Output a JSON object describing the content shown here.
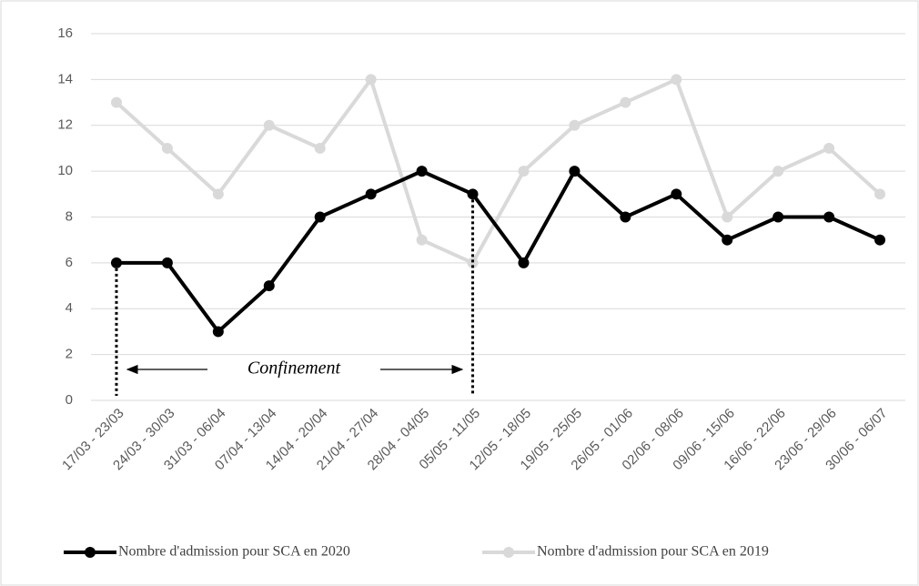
{
  "chart_data": {
    "type": "line",
    "categories": [
      "17/03 - 23/03",
      "24/03 - 30/03",
      "31/03 - 06/04",
      "07/04 - 13/04",
      "14/04 - 20/04",
      "21/04 - 27/04",
      "28/04 - 04/05",
      "05/05 - 11/05",
      "12/05 - 18/05",
      "19/05 - 25/05",
      "26/05 - 01/06",
      "02/06 - 08/06",
      "09/06 - 15/06",
      "16/06 - 22/06",
      "23/06 - 29/06",
      "30/06 - 06/07"
    ],
    "series": [
      {
        "name": "Nombre d'admission pour SCA en 2020",
        "color": "#000000",
        "values": [
          6,
          6,
          3,
          5,
          8,
          9,
          10,
          9,
          6,
          10,
          8,
          9,
          7,
          8,
          8,
          7
        ]
      },
      {
        "name": "Nombre d'admission pour SCA en 2019",
        "color": "#d9d9d9",
        "values": [
          13,
          11,
          9,
          12,
          11,
          14,
          7,
          6,
          10,
          12,
          13,
          14,
          8,
          10,
          11,
          9
        ]
      }
    ],
    "ylim": [
      0,
      16
    ],
    "yticks": [
      0,
      2,
      4,
      6,
      8,
      10,
      12,
      14,
      16
    ],
    "grid": true,
    "legend": "bottom",
    "annotation": "Confinement"
  }
}
